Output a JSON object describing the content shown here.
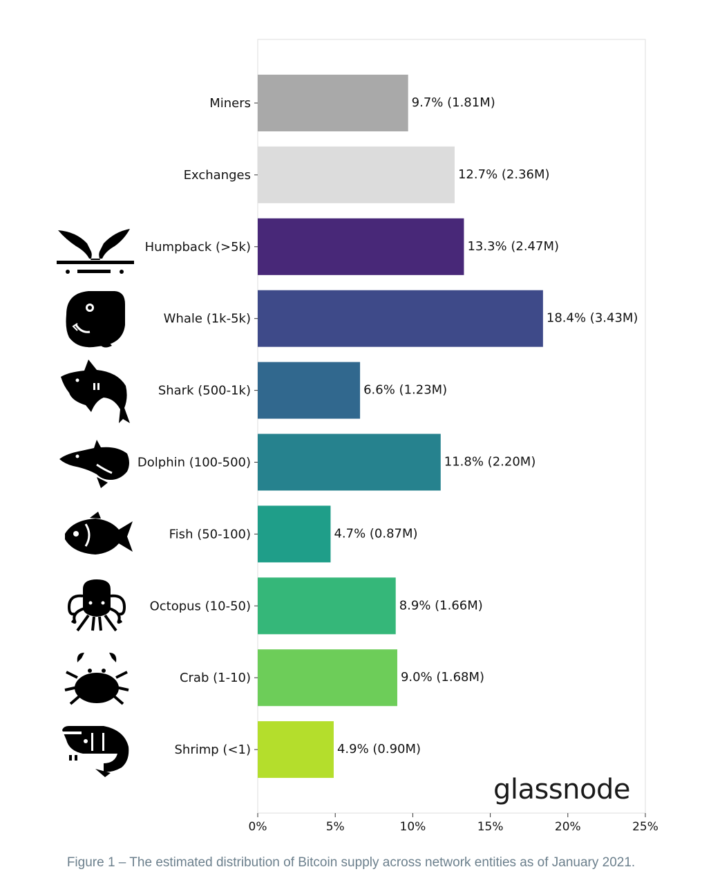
{
  "chart_data": {
    "type": "bar",
    "orientation": "horizontal",
    "categories": [
      "Miners",
      "Exchanges",
      "Humpback (>5k)",
      "Whale (1k-5k)",
      "Shark (500-1k)",
      "Dolphin (100-500)",
      "Fish (50-100)",
      "Octopus (10-50)",
      "Crab (1-10)",
      "Shrimp (<1)"
    ],
    "values": [
      9.7,
      12.7,
      13.3,
      18.4,
      6.6,
      11.8,
      4.7,
      8.9,
      9.0,
      4.9
    ],
    "value_labels": [
      "9.7% (1.81M)",
      "12.7% (2.36M)",
      "13.3% (2.47M)",
      "18.4% (3.43M)",
      "6.6% (1.23M)",
      "11.8% (2.20M)",
      "4.7% (0.87M)",
      "8.9% (1.66M)",
      "9.0% (1.68M)",
      "4.9% (0.90M)"
    ],
    "colors": [
      "#a9a9a9",
      "#dcdcdc",
      "#482878",
      "#3e4a89",
      "#31688e",
      "#26828e",
      "#1f9e89",
      "#35b779",
      "#6dcd59",
      "#b4de2c"
    ],
    "icons": [
      "",
      "",
      "humpback-tail-icon",
      "whale-icon",
      "shark-icon",
      "dolphin-icon",
      "fish-icon",
      "octopus-icon",
      "crab-icon",
      "shrimp-icon"
    ],
    "xlim": [
      0,
      25
    ],
    "xticks": [
      0,
      5,
      10,
      15,
      20,
      25
    ],
    "xtick_labels": [
      "0%",
      "5%",
      "10%",
      "15%",
      "20%",
      "25%"
    ],
    "title": "",
    "xlabel": "",
    "ylabel": "",
    "grid": false,
    "legend": "none"
  },
  "watermark": "glassnode",
  "caption": "Figure 1 – The estimated distribution of Bitcoin supply across network entities as of January 2021."
}
